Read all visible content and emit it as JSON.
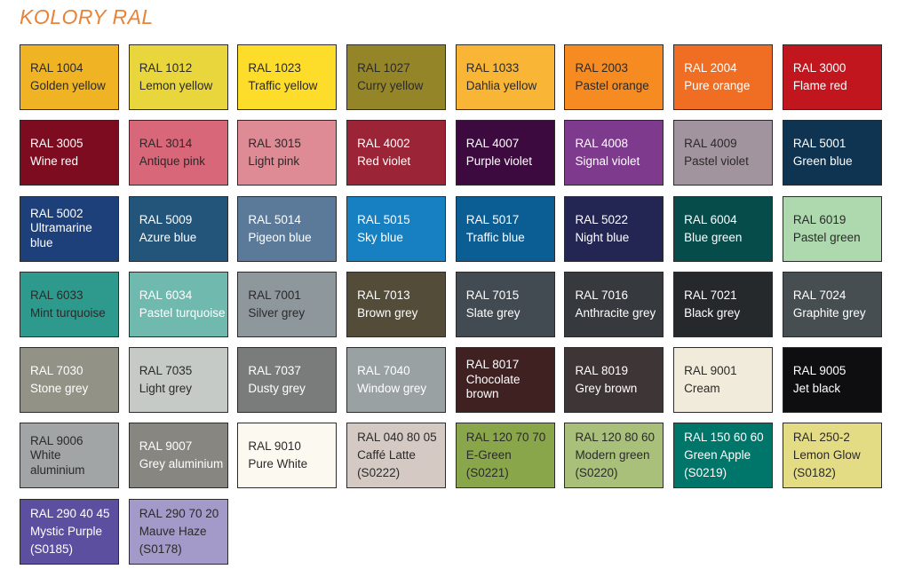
{
  "title": "KOLORY RAL",
  "swatches": [
    {
      "code": "RAL 1004",
      "name": "Golden yellow",
      "color": "#F0B323",
      "text": "dark"
    },
    {
      "code": "RAL 1012",
      "name": "Lemon yellow",
      "color": "#E9D63C",
      "text": "dark"
    },
    {
      "code": "RAL 1023",
      "name": "Traffic yellow",
      "color": "#FDDC2A",
      "text": "dark"
    },
    {
      "code": "RAL 1027",
      "name": "Curry yellow",
      "color": "#958529",
      "text": "dark"
    },
    {
      "code": "RAL 1033",
      "name": "Dahlia yellow",
      "color": "#F9B535",
      "text": "dark"
    },
    {
      "code": "RAL 2003",
      "name": "Pastel orange",
      "color": "#F58B21",
      "text": "dark"
    },
    {
      "code": "RAL 2004",
      "name": "Pure orange",
      "color": "#F06E23",
      "text": "light"
    },
    {
      "code": "RAL 3000",
      "name": "Flame red",
      "color": "#C2161F",
      "text": "light"
    },
    {
      "code": "RAL 3005",
      "name": "Wine red",
      "color": "#7D0C20",
      "text": "light"
    },
    {
      "code": "RAL 3014",
      "name": "Antique pink",
      "color": "#D9677A",
      "text": "dark"
    },
    {
      "code": "RAL 3015",
      "name": "Light pink",
      "color": "#DE8B96",
      "text": "dark"
    },
    {
      "code": "RAL 4002",
      "name": "Red violet",
      "color": "#9B2536",
      "text": "light"
    },
    {
      "code": "RAL 4007",
      "name": "Purple violet",
      "color": "#3C0A3F",
      "text": "light"
    },
    {
      "code": "RAL 4008",
      "name": "Signal violet",
      "color": "#7E3A8C",
      "text": "light"
    },
    {
      "code": "RAL 4009",
      "name": "Pastel violet",
      "color": "#A2949E",
      "text": "dark"
    },
    {
      "code": "RAL 5001",
      "name": "Green blue",
      "color": "#0F3452",
      "text": "light"
    },
    {
      "code": "RAL 5002",
      "name": "Ultramarine blue",
      "color": "#1D3F7A",
      "text": "light",
      "multi": true
    },
    {
      "code": "RAL 5009",
      "name": "Azure blue",
      "color": "#23557A",
      "text": "light"
    },
    {
      "code": "RAL 5014",
      "name": "Pigeon blue",
      "color": "#5B7A9A",
      "text": "light"
    },
    {
      "code": "RAL 5015",
      "name": "Sky blue",
      "color": "#1780C2",
      "text": "light"
    },
    {
      "code": "RAL 5017",
      "name": "Traffic blue",
      "color": "#0B5E94",
      "text": "light"
    },
    {
      "code": "RAL 5022",
      "name": "Night blue",
      "color": "#232552",
      "text": "light"
    },
    {
      "code": "RAL 6004",
      "name": "Blue green",
      "color": "#064C4B",
      "text": "light"
    },
    {
      "code": "RAL 6019",
      "name": "Pastel green",
      "color": "#AED9AE",
      "text": "dark"
    },
    {
      "code": "RAL 6033",
      "name": "Mint turquoise",
      "color": "#2E9A8E",
      "text": "dark"
    },
    {
      "code": "RAL 6034",
      "name": "Pastel turquoise",
      "color": "#6FB9AE",
      "text": "light"
    },
    {
      "code": "RAL 7001",
      "name": "Silver grey",
      "color": "#8E979C",
      "text": "dark"
    },
    {
      "code": "RAL 7013",
      "name": "Brown grey",
      "color": "#524C39",
      "text": "light"
    },
    {
      "code": "RAL 7015",
      "name": "Slate grey",
      "color": "#434B52",
      "text": "light"
    },
    {
      "code": "RAL 7016",
      "name": "Anthracite grey",
      "color": "#36393D",
      "text": "light"
    },
    {
      "code": "RAL 7021",
      "name": "Black grey",
      "color": "#25292C",
      "text": "light"
    },
    {
      "code": "RAL 7024",
      "name": "Graphite grey",
      "color": "#474E52",
      "text": "light"
    },
    {
      "code": "RAL 7030",
      "name": "Stone grey",
      "color": "#929287",
      "text": "light"
    },
    {
      "code": "RAL 7035",
      "name": "Light grey",
      "color": "#C5CAC7",
      "text": "dark"
    },
    {
      "code": "RAL 7037",
      "name": "Dusty grey",
      "color": "#7A7B7B",
      "text": "light"
    },
    {
      "code": "RAL 7040",
      "name": "Window grey",
      "color": "#9AA1A3",
      "text": "light"
    },
    {
      "code": "RAL 8017",
      "name": "Chocolate brown",
      "color": "#3F2122",
      "text": "light",
      "multi": true
    },
    {
      "code": "RAL 8019",
      "name": "Grey brown",
      "color": "#3D3536",
      "text": "light"
    },
    {
      "code": "RAL 9001",
      "name": "Cream",
      "color": "#F0EBDA",
      "text": "dark"
    },
    {
      "code": "RAL 9005",
      "name": "Jet black",
      "color": "#0E0E10",
      "text": "light"
    },
    {
      "code": "RAL 9006",
      "name": "White aluminium",
      "color": "#A2A5A6",
      "text": "dark",
      "multi": true
    },
    {
      "code": "RAL 9007",
      "name": "Grey aluminium",
      "color": "#878681",
      "text": "light"
    },
    {
      "code": "RAL 9010",
      "name": "Pure White",
      "color": "#FBF9F0",
      "text": "dark"
    },
    {
      "code": "RAL 040 80 05",
      "name": "Caffé Latte",
      "ref": "(S0222)",
      "color": "#D4C9C3",
      "text": "dark"
    },
    {
      "code": "RAL 120 70 70",
      "name": "E-Green",
      "ref": "(S0221)",
      "color": "#8AA64B",
      "text": "dark"
    },
    {
      "code": "RAL 120 80 60",
      "name": "Modern green",
      "ref": "(S0220)",
      "color": "#A8C07A",
      "text": "dark"
    },
    {
      "code": "RAL 150 60 60",
      "name": "Green Apple",
      "ref": "(S0219)",
      "color": "#00766A",
      "text": "light"
    },
    {
      "code": "RAL 250-2",
      "name": "Lemon Glow",
      "ref": "(S0182)",
      "color": "#E4DC85",
      "text": "dark"
    },
    {
      "code": "RAL 290 40 45",
      "name": "Mystic Purple",
      "ref": "(S0185)",
      "color": "#5D4FA0",
      "text": "light"
    },
    {
      "code": "RAL 290 70 20",
      "name": "Mauve Haze",
      "ref": "(S0178)",
      "color": "#A39AC9",
      "text": "dark"
    }
  ]
}
